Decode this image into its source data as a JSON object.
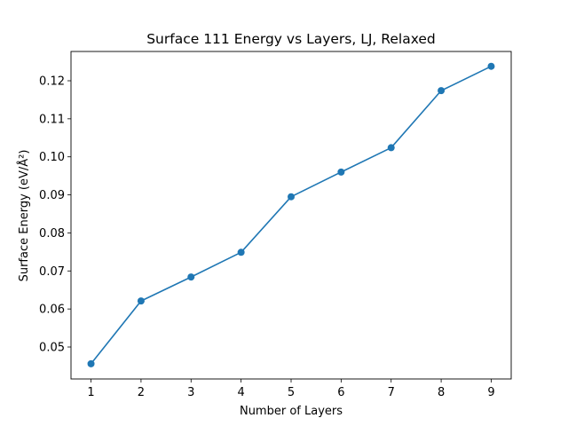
{
  "chart_data": {
    "type": "line",
    "title": "Surface 111 Energy vs Layers, LJ, Relaxed",
    "xlabel": "Number of Layers",
    "ylabel": "Surface Energy (eV/Å²)",
    "x": [
      1,
      2,
      3,
      4,
      5,
      6,
      7,
      8,
      9
    ],
    "series": [
      {
        "values": [
          0.0456,
          0.0621,
          0.0684,
          0.0749,
          0.0895,
          0.096,
          0.1024,
          0.1174,
          0.1238
        ],
        "color": "#1f77b4"
      }
    ],
    "xticks": [
      "1",
      "2",
      "3",
      "4",
      "5",
      "6",
      "7",
      "8",
      "9"
    ],
    "yticks": [
      "0.05",
      "0.06",
      "0.07",
      "0.08",
      "0.09",
      "0.10",
      "0.11",
      "0.12"
    ],
    "xlim": [
      0.6,
      9.4
    ],
    "ylim": [
      0.0416,
      0.1277
    ],
    "grid": false,
    "legend": "none"
  }
}
